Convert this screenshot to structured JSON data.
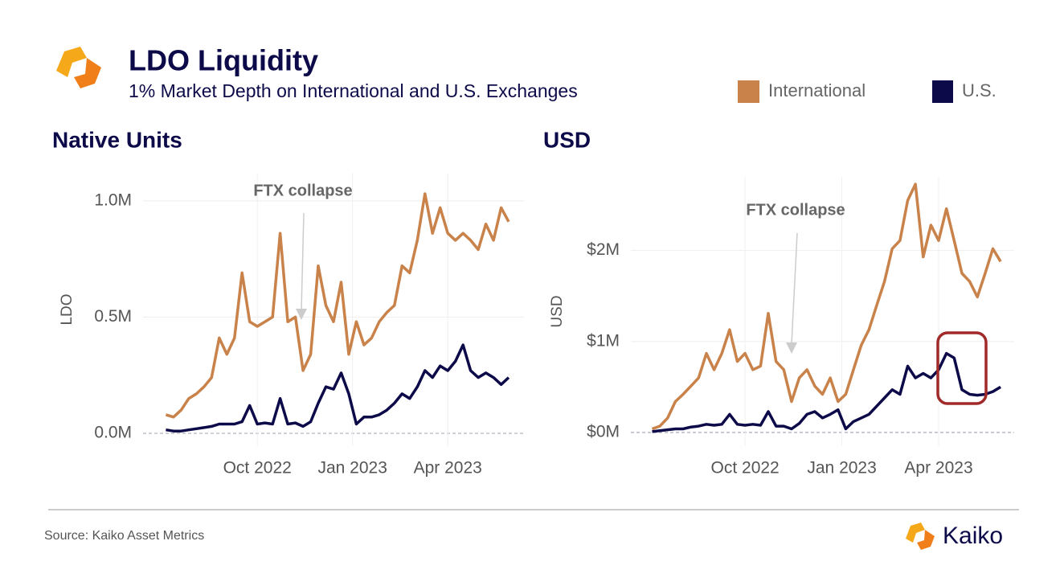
{
  "header": {
    "title": "LDO Liquidity",
    "subtitle": "1% Market Depth on International and U.S. Exchanges"
  },
  "footer": {
    "source": "Source: Kaiko Asset Metrics",
    "brand": "Kaiko"
  },
  "chart_data": [
    {
      "type": "line",
      "title": "Native Units",
      "ylabel": "LDO",
      "annotation": "FTX collapse",
      "x": [
        2022.51,
        2022.53,
        2022.55,
        2022.57,
        2022.59,
        2022.61,
        2022.63,
        2022.65,
        2022.67,
        2022.69,
        2022.71,
        2022.73,
        2022.75,
        2022.77,
        2022.79,
        2022.81,
        2022.83,
        2022.85,
        2022.87,
        2022.89,
        2022.91,
        2022.93,
        2022.95,
        2022.97,
        2022.99,
        2023.01,
        2023.03,
        2023.05,
        2023.07,
        2023.09,
        2023.11,
        2023.13,
        2023.15,
        2023.17,
        2023.19,
        2023.21,
        2023.23,
        2023.25,
        2023.27,
        2023.29,
        2023.31,
        2023.33,
        2023.35,
        2023.37,
        2023.39,
        2023.41
      ],
      "series": [
        {
          "name": "International",
          "color": "#c8824a",
          "values": [
            80000,
            70000,
            100000,
            150000,
            170000,
            200000,
            240000,
            410000,
            340000,
            410000,
            690000,
            480000,
            460000,
            480000,
            500000,
            860000,
            480000,
            500000,
            270000,
            340000,
            720000,
            550000,
            480000,
            650000,
            340000,
            480000,
            380000,
            410000,
            480000,
            520000,
            550000,
            720000,
            690000,
            830000,
            1030000,
            860000,
            970000,
            860000,
            830000,
            860000,
            830000,
            790000,
            900000,
            830000,
            970000,
            910000
          ]
        },
        {
          "name": "U.S.",
          "color": "#0d0a4a",
          "values": [
            15000,
            10000,
            10000,
            15000,
            20000,
            25000,
            30000,
            40000,
            40000,
            40000,
            50000,
            120000,
            40000,
            45000,
            40000,
            150000,
            40000,
            45000,
            30000,
            50000,
            130000,
            200000,
            190000,
            260000,
            170000,
            40000,
            70000,
            70000,
            80000,
            100000,
            130000,
            170000,
            150000,
            200000,
            270000,
            240000,
            290000,
            270000,
            310000,
            380000,
            270000,
            240000,
            260000,
            240000,
            210000,
            240000
          ]
        }
      ],
      "xlim": [
        2022.45,
        2023.45
      ],
      "xticks": [
        {
          "value": 2022.75,
          "label": "Oct 2022"
        },
        {
          "value": 2023,
          "label": "Jan 2023"
        },
        {
          "value": 2023.25,
          "label": "Apr 2023"
        }
      ],
      "ylim": [
        -55000,
        1120000
      ],
      "yticks": [
        {
          "value": 0,
          "label": "0.0M"
        },
        {
          "value": 500000,
          "label": "0.5M"
        },
        {
          "value": 1000000,
          "label": "1.0M"
        }
      ],
      "grid": true
    },
    {
      "type": "line",
      "title": "USD",
      "ylabel": "USD",
      "annotation": "FTX collapse",
      "x": [
        2022.51,
        2022.53,
        2022.55,
        2022.57,
        2022.59,
        2022.61,
        2022.63,
        2022.65,
        2022.67,
        2022.69,
        2022.71,
        2022.73,
        2022.75,
        2022.77,
        2022.79,
        2022.81,
        2022.83,
        2022.85,
        2022.87,
        2022.89,
        2022.91,
        2022.93,
        2022.95,
        2022.97,
        2022.99,
        2023.01,
        2023.03,
        2023.05,
        2023.07,
        2023.09,
        2023.11,
        2023.13,
        2023.15,
        2023.17,
        2023.19,
        2023.21,
        2023.23,
        2023.25,
        2023.27,
        2023.29,
        2023.31,
        2023.33,
        2023.35,
        2023.37,
        2023.39,
        2023.41
      ],
      "series": [
        {
          "name": "International",
          "color": "#c8824a",
          "values": [
            40000,
            70000,
            160000,
            340000,
            420000,
            510000,
            600000,
            870000,
            690000,
            870000,
            1130000,
            780000,
            870000,
            690000,
            730000,
            1310000,
            780000,
            690000,
            340000,
            600000,
            690000,
            510000,
            420000,
            600000,
            340000,
            420000,
            690000,
            960000,
            1130000,
            1400000,
            1660000,
            2020000,
            2110000,
            2550000,
            2730000,
            1930000,
            2280000,
            2110000,
            2460000,
            2110000,
            1750000,
            1660000,
            1490000,
            1750000,
            2020000,
            1880000
          ]
        },
        {
          "name": "U.S.",
          "color": "#0d0a4a",
          "values": [
            10000,
            20000,
            30000,
            40000,
            40000,
            60000,
            70000,
            90000,
            80000,
            90000,
            200000,
            90000,
            80000,
            90000,
            80000,
            230000,
            70000,
            70000,
            40000,
            100000,
            200000,
            230000,
            160000,
            200000,
            250000,
            40000,
            120000,
            160000,
            200000,
            290000,
            380000,
            470000,
            420000,
            730000,
            600000,
            650000,
            600000,
            690000,
            870000,
            820000,
            470000,
            420000,
            410000,
            420000,
            450000,
            500000
          ]
        }
      ],
      "xlim": [
        2022.455,
        2023.445
      ],
      "xticks": [
        {
          "value": 2022.75,
          "label": "Oct 2022"
        },
        {
          "value": 2023,
          "label": "Jan 2023"
        },
        {
          "value": 2023.25,
          "label": "Apr 2023"
        }
      ],
      "ylim": [
        -150000,
        2810000
      ],
      "yticks": [
        {
          "value": 0,
          "label": "$0M"
        },
        {
          "value": 1000000,
          "label": "$1M"
        },
        {
          "value": 2000000,
          "label": "$2M"
        }
      ],
      "grid": true
    }
  ]
}
